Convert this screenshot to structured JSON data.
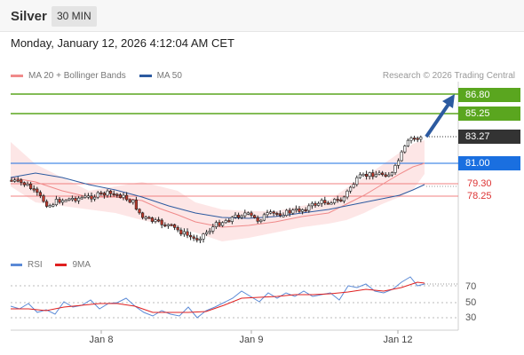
{
  "header": {
    "symbol": "Silver",
    "timeframe": "30 MIN"
  },
  "datetime": "Monday, January 12, 2026 4:12:04 AM CET",
  "legend": {
    "items": [
      {
        "label": "MA 20 + Bollinger Bands",
        "color": "#f08a8a"
      },
      {
        "label": "MA 50",
        "color": "#2c5aa0"
      }
    ],
    "credit": "Research © 2026 Trading Central"
  },
  "levels": {
    "green_top": "86.80",
    "green_second": "85.25",
    "current": "83.27",
    "blue": "81.00",
    "red_top": "79.30",
    "red_second": "78.25"
  },
  "colors": {
    "green": "#5aa61f",
    "blue": "#1a6fe0",
    "current": "#333333",
    "red": "#d33333",
    "arrow": "#2c5aa0",
    "candle_up": "#ffffff",
    "candle_down": "#c0392b",
    "band_fill": "#fde3e3",
    "rsi": "#5b8ad6",
    "ma9": "#e02020"
  },
  "rsi_panel": {
    "legend": [
      {
        "label": "RSI",
        "color": "#5b8ad6"
      },
      {
        "label": "9MA",
        "color": "#e02020"
      }
    ],
    "ticks": [
      "70",
      "50",
      "30"
    ]
  },
  "x_axis": {
    "labels": [
      "Jan 8",
      "Jan 9",
      "Jan 12"
    ]
  }
}
